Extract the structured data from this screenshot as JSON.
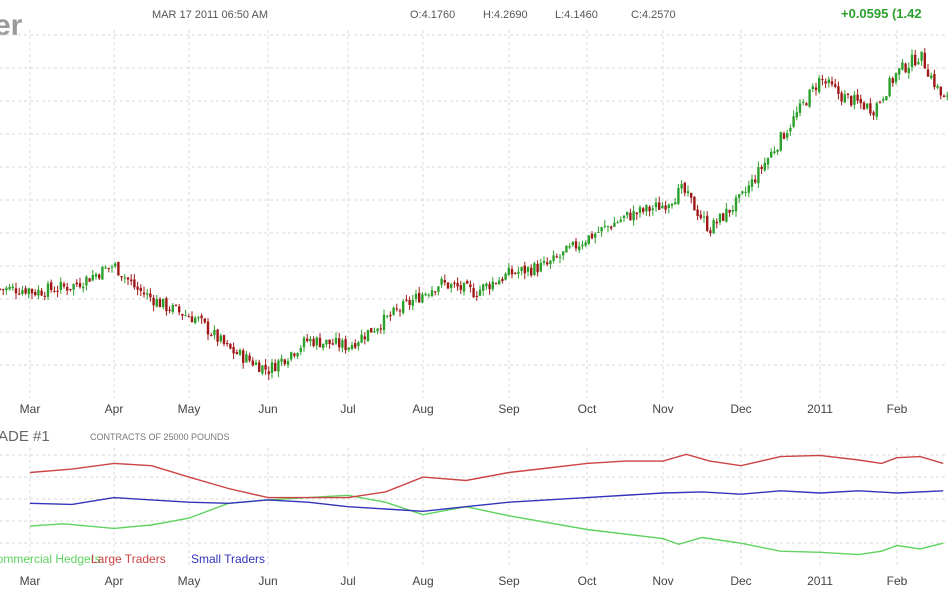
{
  "header": {
    "title_fragment": "er",
    "timestamp": "MAR 17 2011 06:50 AM",
    "open": "O:4.1760",
    "high": "H:4.2690",
    "low": "L:4.1460",
    "close": "C:4.2570",
    "change": "+0.0595 (1.42"
  },
  "colors": {
    "up": "#2ca02c",
    "down": "#a01818",
    "commercial": "#5fd35f",
    "large": "#cc4444",
    "small": "#3333bb",
    "grid": "#d8d8d8"
  },
  "lower_panel": {
    "title_fragment": "ADE #1",
    "note": "CONTRACTS OF 25000 POUNDS"
  },
  "chart_data": [
    {
      "type": "candlestick",
      "x_ticks": [
        "Mar",
        "Apr",
        "May",
        "Jun",
        "Jul",
        "Aug",
        "Sep",
        "Oct",
        "Nov",
        "Dec",
        "2011",
        "Feb"
      ],
      "close_anchors": [
        {
          "t": 0.0,
          "v": 3.12
        },
        {
          "t": 0.03,
          "v": 3.11
        },
        {
          "t": 0.5,
          "v": 3.13
        },
        {
          "t": 1.0,
          "v": 3.2
        },
        {
          "t": 1.3,
          "v": 3.12
        },
        {
          "t": 1.7,
          "v": 3.06
        },
        {
          "t": 2.1,
          "v": 3.02
        },
        {
          "t": 2.5,
          "v": 2.92
        },
        {
          "t": 3.0,
          "v": 2.85
        },
        {
          "t": 3.5,
          "v": 2.95
        },
        {
          "t": 4.0,
          "v": 2.93
        },
        {
          "t": 4.4,
          "v": 3.0
        },
        {
          "t": 4.8,
          "v": 3.07
        },
        {
          "t": 5.2,
          "v": 3.14
        },
        {
          "t": 5.6,
          "v": 3.11
        },
        {
          "t": 6.0,
          "v": 3.17
        },
        {
          "t": 6.5,
          "v": 3.2
        },
        {
          "t": 7.0,
          "v": 3.29
        },
        {
          "t": 7.5,
          "v": 3.36
        },
        {
          "t": 8.0,
          "v": 3.4
        },
        {
          "t": 8.25,
          "v": 3.45
        },
        {
          "t": 8.6,
          "v": 3.32
        },
        {
          "t": 9.0,
          "v": 3.42
        },
        {
          "t": 9.5,
          "v": 3.62
        },
        {
          "t": 10.0,
          "v": 3.82
        },
        {
          "t": 10.3,
          "v": 3.76
        },
        {
          "t": 10.7,
          "v": 3.72
        },
        {
          "t": 11.0,
          "v": 3.84
        },
        {
          "t": 11.3,
          "v": 3.9
        },
        {
          "t": 11.6,
          "v": 3.75
        }
      ]
    },
    {
      "type": "line",
      "x_ticks": [
        "Mar",
        "Apr",
        "May",
        "Jun",
        "Jul",
        "Aug",
        "Sep",
        "Oct",
        "Nov",
        "Dec",
        "2011",
        "Feb"
      ],
      "ylim": [
        0,
        100
      ],
      "series": [
        {
          "name": "Commercial Hedgers",
          "points": [
            [
              0,
              35
            ],
            [
              0.4,
              37
            ],
            [
              1,
              33
            ],
            [
              1.5,
              36
            ],
            [
              2,
              42
            ],
            [
              2.5,
              55
            ],
            [
              3,
              58
            ],
            [
              3.5,
              60
            ],
            [
              4,
              62
            ],
            [
              4.5,
              56
            ],
            [
              5,
              45
            ],
            [
              5.5,
              52
            ],
            [
              6,
              44
            ],
            [
              7,
              32
            ],
            [
              8,
              24
            ],
            [
              8.2,
              19
            ],
            [
              8.5,
              25
            ],
            [
              9,
              20
            ],
            [
              9.5,
              13
            ],
            [
              10,
              12
            ],
            [
              10.5,
              10
            ],
            [
              10.8,
              13
            ],
            [
              11,
              18
            ],
            [
              11.3,
              15
            ],
            [
              11.6,
              20
            ]
          ]
        },
        {
          "name": "Large Traders",
          "points": [
            [
              0,
              82
            ],
            [
              0.5,
              85
            ],
            [
              1,
              90
            ],
            [
              1.5,
              88
            ],
            [
              2,
              78
            ],
            [
              2.5,
              68
            ],
            [
              3,
              60
            ],
            [
              3.5,
              60
            ],
            [
              4,
              60
            ],
            [
              4.5,
              65
            ],
            [
              5,
              78
            ],
            [
              5.5,
              75
            ],
            [
              6,
              82
            ],
            [
              6.5,
              86
            ],
            [
              7,
              90
            ],
            [
              7.5,
              92
            ],
            [
              8,
              92
            ],
            [
              8.3,
              98
            ],
            [
              8.6,
              92
            ],
            [
              9,
              88
            ],
            [
              9.5,
              96
            ],
            [
              10,
              97
            ],
            [
              10.5,
              93
            ],
            [
              10.8,
              90
            ],
            [
              11,
              95
            ],
            [
              11.3,
              96
            ],
            [
              11.6,
              90
            ]
          ]
        },
        {
          "name": "Small Traders",
          "points": [
            [
              0,
              55
            ],
            [
              0.5,
              54
            ],
            [
              1,
              60
            ],
            [
              1.5,
              58
            ],
            [
              2,
              56
            ],
            [
              2.5,
              55
            ],
            [
              3,
              58
            ],
            [
              3.5,
              56
            ],
            [
              4,
              52
            ],
            [
              4.5,
              50
            ],
            [
              5,
              48
            ],
            [
              5.5,
              52
            ],
            [
              6,
              56
            ],
            [
              7,
              60
            ],
            [
              8,
              64
            ],
            [
              8.5,
              65
            ],
            [
              9,
              63
            ],
            [
              9.5,
              66
            ],
            [
              10,
              64
            ],
            [
              10.5,
              66
            ],
            [
              11,
              64
            ],
            [
              11.6,
              66
            ]
          ]
        }
      ]
    }
  ]
}
